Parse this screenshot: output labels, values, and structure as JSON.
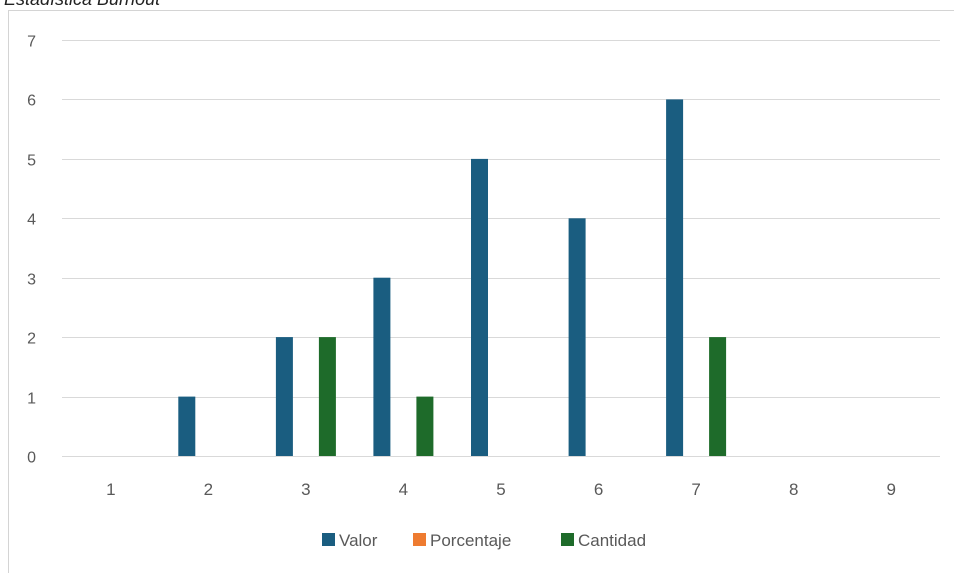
{
  "chart_data": {
    "type": "bar",
    "title": "Estadística Burnout",
    "categories": [
      "1",
      "2",
      "3",
      "4",
      "5",
      "6",
      "7",
      "8",
      "9"
    ],
    "series": [
      {
        "name": "Valor",
        "color": "#1a5d80",
        "values": [
          0,
          1,
          2,
          3,
          5,
          4,
          6,
          0,
          0
        ]
      },
      {
        "name": "Porcentaje",
        "color": "#ee7b30",
        "values": [
          0,
          0,
          0,
          0,
          0,
          0,
          0,
          0,
          0
        ]
      },
      {
        "name": "Cantidad",
        "color": "#1e6b2a",
        "values": [
          0,
          0,
          2,
          1,
          0,
          0,
          2,
          0,
          0
        ]
      }
    ],
    "yticks": [
      "0",
      "1",
      "2",
      "3",
      "4",
      "5",
      "6",
      "7"
    ],
    "ylim": [
      0,
      7
    ],
    "grid": true,
    "legend": "bottom"
  }
}
